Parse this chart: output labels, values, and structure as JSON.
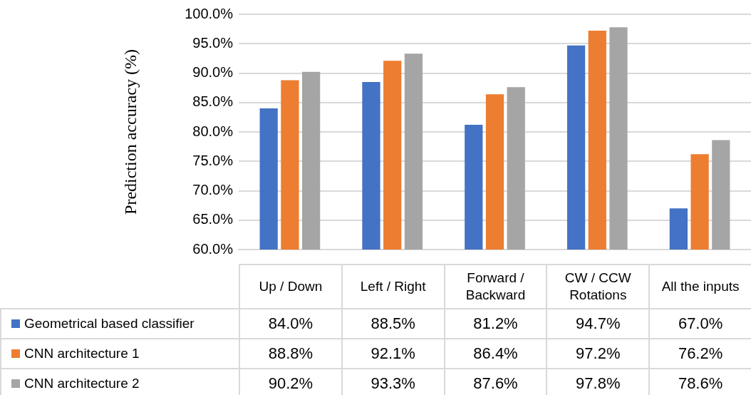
{
  "chart_data": {
    "type": "bar",
    "ylabel": "Prediction accuracy (%)",
    "categories": [
      "Up / Down",
      "Left / Right",
      "Forward / Backward",
      "CW / CCW Rotations",
      "All the inputs"
    ],
    "series": [
      {
        "name": "Geometrical based classifier",
        "color": "#4472c4",
        "values": [
          84.0,
          88.5,
          81.2,
          94.7,
          67.0
        ],
        "value_labels": [
          "84.0%",
          "88.5%",
          "81.2%",
          "94.7%",
          "67.0%"
        ]
      },
      {
        "name": "CNN architecture 1",
        "color": "#ed7d31",
        "values": [
          88.8,
          92.1,
          86.4,
          97.2,
          76.2
        ],
        "value_labels": [
          "88.8%",
          "92.1%",
          "86.4%",
          "97.2%",
          "76.2%"
        ]
      },
      {
        "name": "CNN architecture 2",
        "color": "#a5a5a5",
        "values": [
          90.2,
          93.3,
          87.6,
          97.8,
          78.6
        ],
        "value_labels": [
          "90.2%",
          "93.3%",
          "87.6%",
          "97.8%",
          "78.6%"
        ]
      }
    ],
    "ylim": [
      60,
      100
    ],
    "yticks": [
      {
        "value": 60,
        "label": "60.0%"
      },
      {
        "value": 65,
        "label": "65.0%"
      },
      {
        "value": 70,
        "label": "70.0%"
      },
      {
        "value": 75,
        "label": "75.0%"
      },
      {
        "value": 80,
        "label": "80.0%"
      },
      {
        "value": 85,
        "label": "85.0%"
      },
      {
        "value": 90,
        "label": "90.0%"
      },
      {
        "value": 95,
        "label": "95.0%"
      },
      {
        "value": 100,
        "label": "100.0%"
      }
    ],
    "grid": "y",
    "legend": "bottom"
  }
}
